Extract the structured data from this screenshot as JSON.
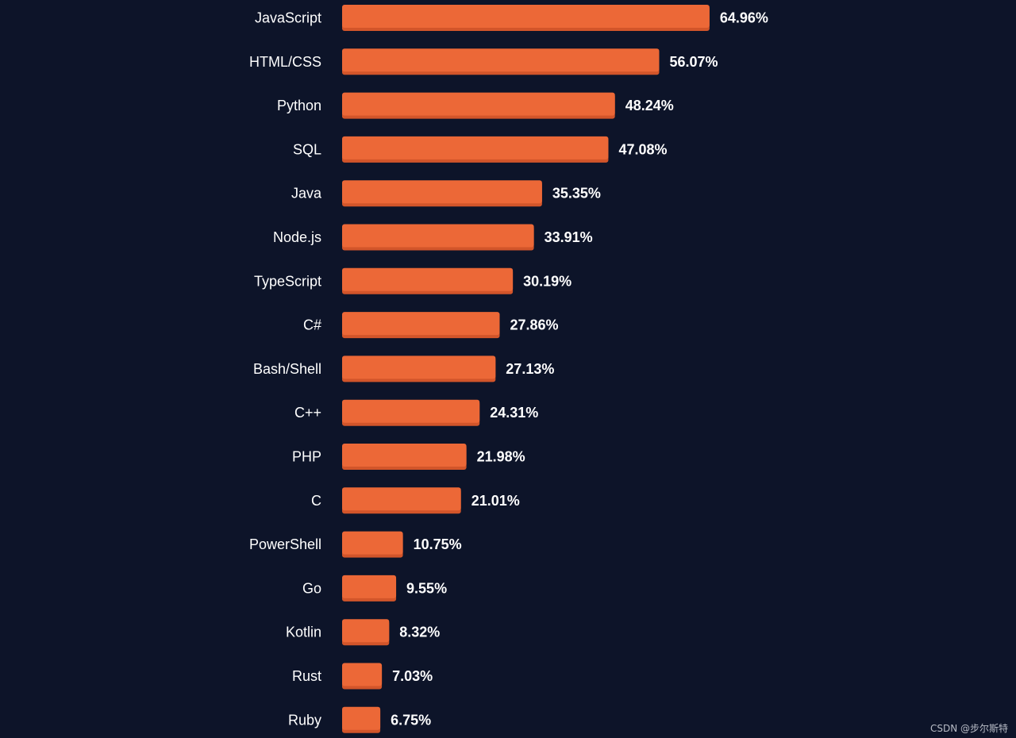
{
  "chart_data": {
    "type": "bar",
    "orientation": "horizontal",
    "categories": [
      "JavaScript",
      "HTML/CSS",
      "Python",
      "SQL",
      "Java",
      "Node.js",
      "TypeScript",
      "C#",
      "Bash/Shell",
      "C++",
      "PHP",
      "C",
      "PowerShell",
      "Go",
      "Kotlin",
      "Rust",
      "Ruby"
    ],
    "values": [
      64.96,
      56.07,
      48.24,
      47.08,
      35.35,
      33.91,
      30.19,
      27.86,
      27.13,
      24.31,
      21.98,
      21.01,
      10.75,
      9.55,
      8.32,
      7.03,
      6.75
    ],
    "value_labels": [
      "64.96%",
      "56.07%",
      "48.24%",
      "47.08%",
      "35.35%",
      "33.91%",
      "30.19%",
      "27.86%",
      "27.13%",
      "24.31%",
      "21.98%",
      "21.01%",
      "10.75%",
      "9.55%",
      "8.32%",
      "7.03%",
      "6.75%"
    ],
    "title": "",
    "xlabel": "",
    "ylabel": "",
    "xlim": [
      0,
      65
    ],
    "grid": false,
    "legend": "none",
    "colors": {
      "background": "#0d1429",
      "bar": "#ec6837",
      "bar_shadow": "#d2552a",
      "text": "#ffffff"
    }
  },
  "watermark": "CSDN @步尔斯特"
}
